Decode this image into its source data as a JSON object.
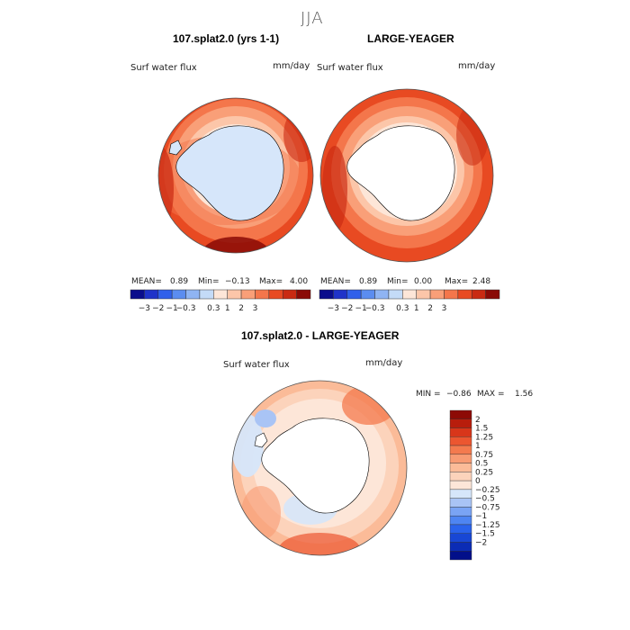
{
  "season": "JJA",
  "units": "mm/day",
  "field_label": "Surf water flux",
  "colors": {
    "top_scale": [
      "#0a0d8c",
      "#1f33c9",
      "#3060ea",
      "#5b8df0",
      "#8fb4f3",
      "#c4dbf7",
      "#fde6d8",
      "#fcc6a9",
      "#f99f78",
      "#f4764b",
      "#e84a22",
      "#c92a12",
      "#8a0a06"
    ],
    "diff_scale": [
      "#020f8a",
      "#0b2cb5",
      "#1847d5",
      "#2a63ec",
      "#4e85f2",
      "#7aa4f4",
      "#a9c4f5",
      "#d6e6fa",
      "#fde6d8",
      "#fcd3bb",
      "#fbbb98",
      "#f89b73",
      "#f47a4e",
      "#ec5630",
      "#d8361a",
      "#b81d0c",
      "#8d0a05"
    ],
    "antarctica_light": "#d6e6fa",
    "land_white": "#ffffff"
  },
  "panels": [
    {
      "title": "107.splat2.0 (yrs 1-1)",
      "field_label": "Surf water flux",
      "units": "mm/day",
      "mean_label": "MEAN=",
      "mean": "0.89",
      "min_label": "Min=",
      "min": "−0.13",
      "max_label": "Max=",
      "max": "4.00",
      "colorbar_ticks": [
        "−3",
        "−2",
        "−1",
        "−0.3",
        "0.3",
        "1",
        "2",
        "3"
      ]
    },
    {
      "title": "LARGE-YEAGER",
      "field_label": "Surf water flux",
      "units": "mm/day",
      "mean_label": "MEAN=",
      "mean": "0.89",
      "min_label": "Min=",
      "min": "0.00",
      "max_label": "Max=",
      "max": "2.48",
      "colorbar_ticks": [
        "−3",
        "−2",
        "−1",
        "−0.3",
        "0.3",
        "1",
        "2",
        "3"
      ]
    }
  ],
  "difference": {
    "title": "107.splat2.0 - LARGE-YEAGER",
    "field_label": "Surf water flux",
    "units": "mm/day",
    "min_label": "MIN =",
    "min": "−0.86",
    "max_label": "MAX =",
    "max": "1.56",
    "colorbar_ticks": [
      "2",
      "1.5",
      "1.25",
      "1",
      "0.75",
      "0.5",
      "0.25",
      "0",
      "−0.25",
      "−0.5",
      "−0.75",
      "−1",
      "−1.25",
      "−1.5",
      "−2"
    ]
  }
}
